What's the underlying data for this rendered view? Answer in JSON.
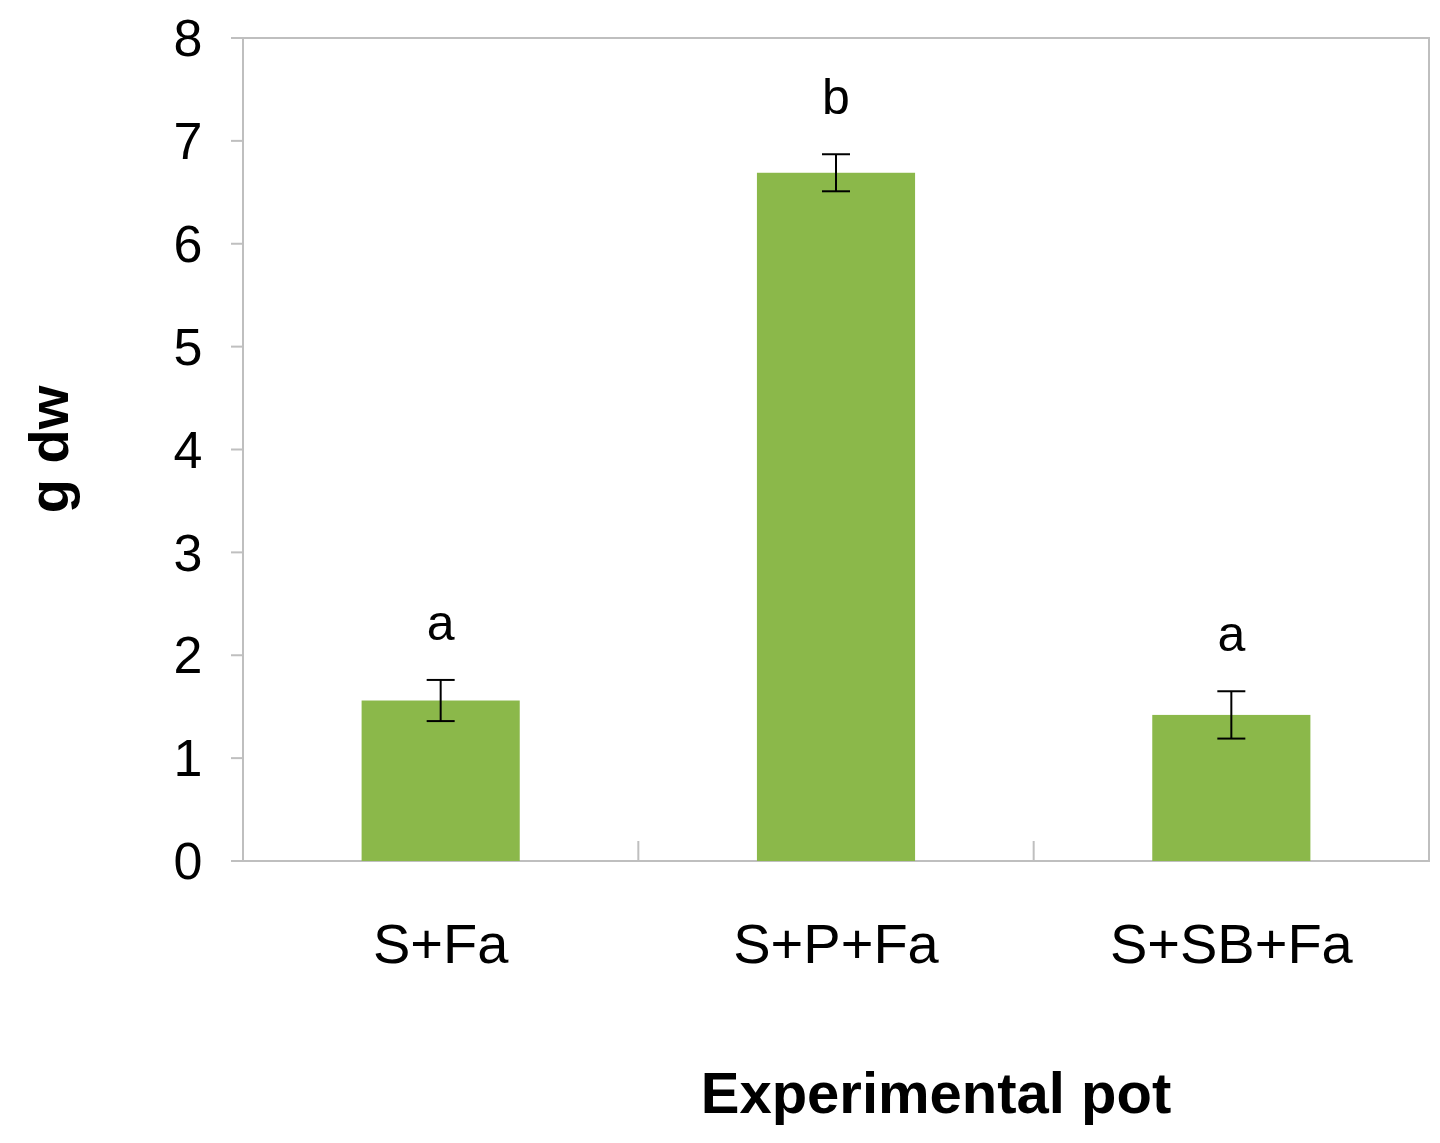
{
  "chart_data": {
    "type": "bar",
    "xlabel": "Experimental pot",
    "ylabel": "g dw",
    "categories": [
      "S+Fa",
      "S+P+Fa",
      "S+SB+Fa"
    ],
    "values": [
      1.56,
      6.69,
      1.42
    ],
    "errors": [
      0.2,
      0.18,
      0.23
    ],
    "color": "#8bb84a",
    "ylim": [
      0,
      8
    ],
    "yticks": [
      0,
      1,
      2,
      3,
      4,
      5,
      6,
      7,
      8
    ],
    "grid": false,
    "annotations": [
      "a",
      "b",
      "a"
    ]
  }
}
